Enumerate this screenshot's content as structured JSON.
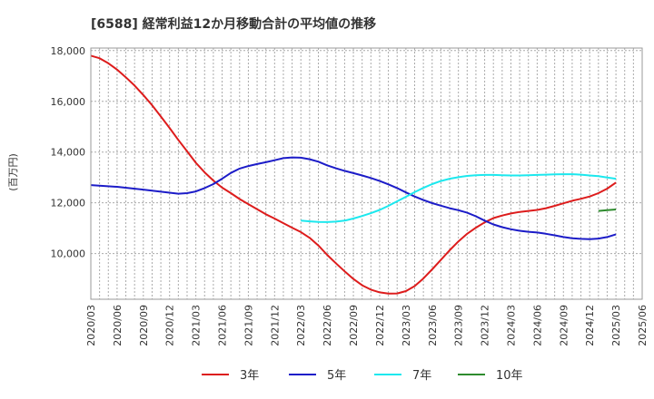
{
  "chart_data": {
    "type": "line",
    "title": "[6588]  経常利益12か月移動合計の平均値の推移",
    "ylabel": "(百万円)",
    "xlabel": "",
    "ylim": [
      8200,
      18100
    ],
    "yticks": [
      10000,
      12000,
      14000,
      16000,
      18000
    ],
    "ytick_labels": [
      "10,000",
      "12,000",
      "14,000",
      "16,000",
      "18,000"
    ],
    "x_range": [
      "2020/03",
      "2025/06"
    ],
    "x_tick_labels": [
      "2020/03",
      "2020/06",
      "2020/09",
      "2020/12",
      "2021/03",
      "2021/06",
      "2021/09",
      "2021/12",
      "2022/03",
      "2022/06",
      "2022/09",
      "2022/12",
      "2023/03",
      "2023/06",
      "2023/09",
      "2023/12",
      "2024/03",
      "2024/06",
      "2024/09",
      "2024/12",
      "2025/03",
      "2025/06"
    ],
    "grid": true,
    "legend_position": "bottom",
    "series": [
      {
        "name": "3年",
        "color": "#dd1c1c",
        "points": [
          [
            "2020/03",
            17800
          ],
          [
            "2020/04",
            17700
          ],
          [
            "2020/05",
            17500
          ],
          [
            "2020/06",
            17250
          ],
          [
            "2020/07",
            16950
          ],
          [
            "2020/08",
            16620
          ],
          [
            "2020/09",
            16250
          ],
          [
            "2020/10",
            15850
          ],
          [
            "2020/11",
            15400
          ],
          [
            "2020/12",
            14950
          ],
          [
            "2021/01",
            14480
          ],
          [
            "2021/02",
            14030
          ],
          [
            "2021/03",
            13580
          ],
          [
            "2021/04",
            13200
          ],
          [
            "2021/05",
            12880
          ],
          [
            "2021/06",
            12600
          ],
          [
            "2021/07",
            12380
          ],
          [
            "2021/08",
            12150
          ],
          [
            "2021/09",
            11950
          ],
          [
            "2021/10",
            11750
          ],
          [
            "2021/11",
            11550
          ],
          [
            "2021/12",
            11380
          ],
          [
            "2022/01",
            11200
          ],
          [
            "2022/02",
            11020
          ],
          [
            "2022/03",
            10850
          ],
          [
            "2022/04",
            10620
          ],
          [
            "2022/05",
            10320
          ],
          [
            "2022/06",
            9950
          ],
          [
            "2022/07",
            9620
          ],
          [
            "2022/08",
            9300
          ],
          [
            "2022/09",
            9000
          ],
          [
            "2022/10",
            8750
          ],
          [
            "2022/11",
            8580
          ],
          [
            "2022/12",
            8470
          ],
          [
            "2023/01",
            8420
          ],
          [
            "2023/02",
            8430
          ],
          [
            "2023/03",
            8520
          ],
          [
            "2023/04",
            8720
          ],
          [
            "2023/05",
            9020
          ],
          [
            "2023/06",
            9380
          ],
          [
            "2023/07",
            9750
          ],
          [
            "2023/08",
            10130
          ],
          [
            "2023/09",
            10480
          ],
          [
            "2023/10",
            10780
          ],
          [
            "2023/11",
            11020
          ],
          [
            "2023/12",
            11230
          ],
          [
            "2024/01",
            11400
          ],
          [
            "2024/02",
            11500
          ],
          [
            "2024/03",
            11580
          ],
          [
            "2024/04",
            11640
          ],
          [
            "2024/05",
            11680
          ],
          [
            "2024/06",
            11720
          ],
          [
            "2024/07",
            11790
          ],
          [
            "2024/08",
            11880
          ],
          [
            "2024/09",
            11980
          ],
          [
            "2024/10",
            12080
          ],
          [
            "2024/11",
            12160
          ],
          [
            "2024/12",
            12250
          ],
          [
            "2025/01",
            12380
          ],
          [
            "2025/02",
            12560
          ],
          [
            "2025/03",
            12800
          ]
        ]
      },
      {
        "name": "5年",
        "color": "#1c1cc8",
        "points": [
          [
            "2020/03",
            12700
          ],
          [
            "2020/06",
            12630
          ],
          [
            "2020/09",
            12520
          ],
          [
            "2020/12",
            12400
          ],
          [
            "2021/01",
            12360
          ],
          [
            "2021/02",
            12380
          ],
          [
            "2021/03",
            12450
          ],
          [
            "2021/04",
            12580
          ],
          [
            "2021/05",
            12740
          ],
          [
            "2021/06",
            12950
          ],
          [
            "2021/07",
            13180
          ],
          [
            "2021/08",
            13350
          ],
          [
            "2021/09",
            13450
          ],
          [
            "2021/10",
            13530
          ],
          [
            "2021/11",
            13600
          ],
          [
            "2021/12",
            13680
          ],
          [
            "2022/01",
            13760
          ],
          [
            "2022/02",
            13790
          ],
          [
            "2022/03",
            13780
          ],
          [
            "2022/04",
            13720
          ],
          [
            "2022/05",
            13620
          ],
          [
            "2022/06",
            13480
          ],
          [
            "2022/07",
            13360
          ],
          [
            "2022/08",
            13260
          ],
          [
            "2022/09",
            13170
          ],
          [
            "2022/10",
            13080
          ],
          [
            "2022/11",
            12980
          ],
          [
            "2022/12",
            12860
          ],
          [
            "2023/01",
            12730
          ],
          [
            "2023/02",
            12580
          ],
          [
            "2023/03",
            12410
          ],
          [
            "2023/04",
            12250
          ],
          [
            "2023/05",
            12110
          ],
          [
            "2023/06",
            11990
          ],
          [
            "2023/07",
            11890
          ],
          [
            "2023/08",
            11790
          ],
          [
            "2023/09",
            11710
          ],
          [
            "2023/10",
            11610
          ],
          [
            "2023/11",
            11470
          ],
          [
            "2023/12",
            11300
          ],
          [
            "2024/01",
            11150
          ],
          [
            "2024/02",
            11040
          ],
          [
            "2024/03",
            10960
          ],
          [
            "2024/04",
            10900
          ],
          [
            "2024/05",
            10860
          ],
          [
            "2024/06",
            10830
          ],
          [
            "2024/07",
            10780
          ],
          [
            "2024/08",
            10720
          ],
          [
            "2024/09",
            10650
          ],
          [
            "2024/10",
            10600
          ],
          [
            "2024/11",
            10580
          ],
          [
            "2024/12",
            10570
          ],
          [
            "2025/01",
            10590
          ],
          [
            "2025/02",
            10650
          ],
          [
            "2025/03",
            10760
          ]
        ]
      },
      {
        "name": "7年",
        "color": "#1ce8ee",
        "points": [
          [
            "2022/03",
            11300
          ],
          [
            "2022/04",
            11270
          ],
          [
            "2022/05",
            11250
          ],
          [
            "2022/06",
            11240
          ],
          [
            "2022/07",
            11260
          ],
          [
            "2022/08",
            11300
          ],
          [
            "2022/09",
            11380
          ],
          [
            "2022/10",
            11480
          ],
          [
            "2022/11",
            11590
          ],
          [
            "2022/12",
            11720
          ],
          [
            "2023/01",
            11880
          ],
          [
            "2023/02",
            12060
          ],
          [
            "2023/03",
            12240
          ],
          [
            "2023/04",
            12420
          ],
          [
            "2023/05",
            12590
          ],
          [
            "2023/06",
            12740
          ],
          [
            "2023/07",
            12860
          ],
          [
            "2023/08",
            12950
          ],
          [
            "2023/09",
            13010
          ],
          [
            "2023/10",
            13060
          ],
          [
            "2023/11",
            13090
          ],
          [
            "2023/12",
            13100
          ],
          [
            "2024/01",
            13100
          ],
          [
            "2024/02",
            13090
          ],
          [
            "2024/03",
            13080
          ],
          [
            "2024/04",
            13080
          ],
          [
            "2024/05",
            13090
          ],
          [
            "2024/06",
            13100
          ],
          [
            "2024/07",
            13110
          ],
          [
            "2024/08",
            13120
          ],
          [
            "2024/09",
            13130
          ],
          [
            "2024/10",
            13130
          ],
          [
            "2024/11",
            13110
          ],
          [
            "2024/12",
            13080
          ],
          [
            "2025/01",
            13050
          ],
          [
            "2025/02",
            13000
          ],
          [
            "2025/03",
            12950
          ]
        ]
      },
      {
        "name": "10年",
        "color": "#2e8b2e",
        "points": [
          [
            "2025/01",
            11680
          ],
          [
            "2025/02",
            11710
          ],
          [
            "2025/03",
            11740
          ]
        ]
      }
    ]
  }
}
